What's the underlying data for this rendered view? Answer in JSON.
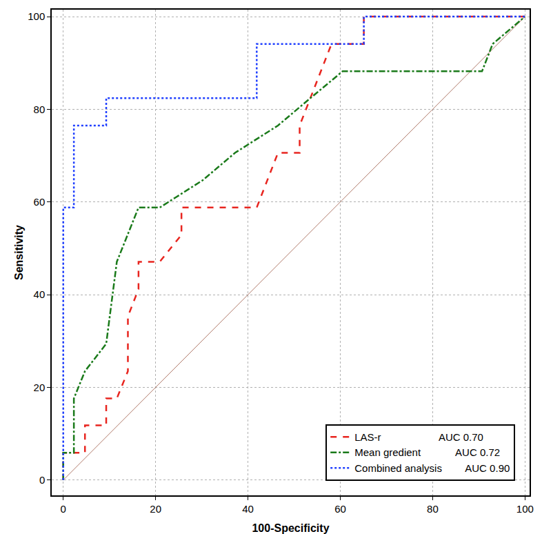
{
  "chart_data": {
    "type": "line",
    "x_label": "100-Specificity",
    "y_label": "Sensitivity",
    "xlim": [
      -2.5,
      101
    ],
    "ylim": [
      -3.3,
      101.5
    ],
    "xticks": [
      0,
      20,
      40,
      60,
      80,
      100
    ],
    "yticks": [
      0,
      20,
      40,
      60,
      80,
      100
    ],
    "grid": true,
    "legend": "lower right",
    "series": [
      {
        "name": "LAS-r",
        "color": "#e8251f",
        "line_style": "dash",
        "auc": {
          "value": 0.7,
          "label": "AUC 0.70"
        },
        "x": [
          0,
          0,
          4.7,
          4.7,
          9.3,
          9.3,
          11.6,
          14,
          14,
          16.3,
          16.3,
          20.9,
          25.6,
          25.6,
          41.9,
          46.5,
          51.2,
          51.2,
          58.1,
          65.1,
          65.1,
          100
        ],
        "values": [
          0,
          5.9,
          5.9,
          11.8,
          11.8,
          17.6,
          17.6,
          23.5,
          35.3,
          41.2,
          47.1,
          47.1,
          52.9,
          58.8,
          58.8,
          70.6,
          70.6,
          76.5,
          94.1,
          94.1,
          100,
          100
        ]
      },
      {
        "name": "Mean gredient",
        "color": "#1a7a1a",
        "line_style": "dashdot",
        "auc": {
          "value": 0.72,
          "label": "AUC 0.72"
        },
        "x": [
          0,
          0,
          2.3,
          2.3,
          4.7,
          9.3,
          11.6,
          16.3,
          20.9,
          30.2,
          37.2,
          46.5,
          53.5,
          60.5,
          90.7,
          93,
          100
        ],
        "values": [
          0,
          5.9,
          5.9,
          17.6,
          23.5,
          29.4,
          47.1,
          58.8,
          58.8,
          64.7,
          70.6,
          76.5,
          82.4,
          88.2,
          88.2,
          94.1,
          100
        ]
      },
      {
        "name": "Combined analysis",
        "color": "#1f3fff",
        "line_style": "dot",
        "auc": {
          "value": 0.9,
          "label": "AUC 0.90"
        },
        "x": [
          0,
          0,
          2.3,
          2.3,
          9.3,
          9.3,
          41.9,
          41.9,
          65.1,
          65.1,
          100
        ],
        "values": [
          0,
          58.8,
          58.8,
          76.5,
          76.5,
          82.4,
          82.4,
          94.1,
          94.1,
          100,
          100
        ]
      }
    ],
    "reference_line": {
      "x": [
        0,
        100
      ],
      "values": [
        0,
        100
      ],
      "color": "#b07a6a",
      "line_style": "solid"
    }
  }
}
